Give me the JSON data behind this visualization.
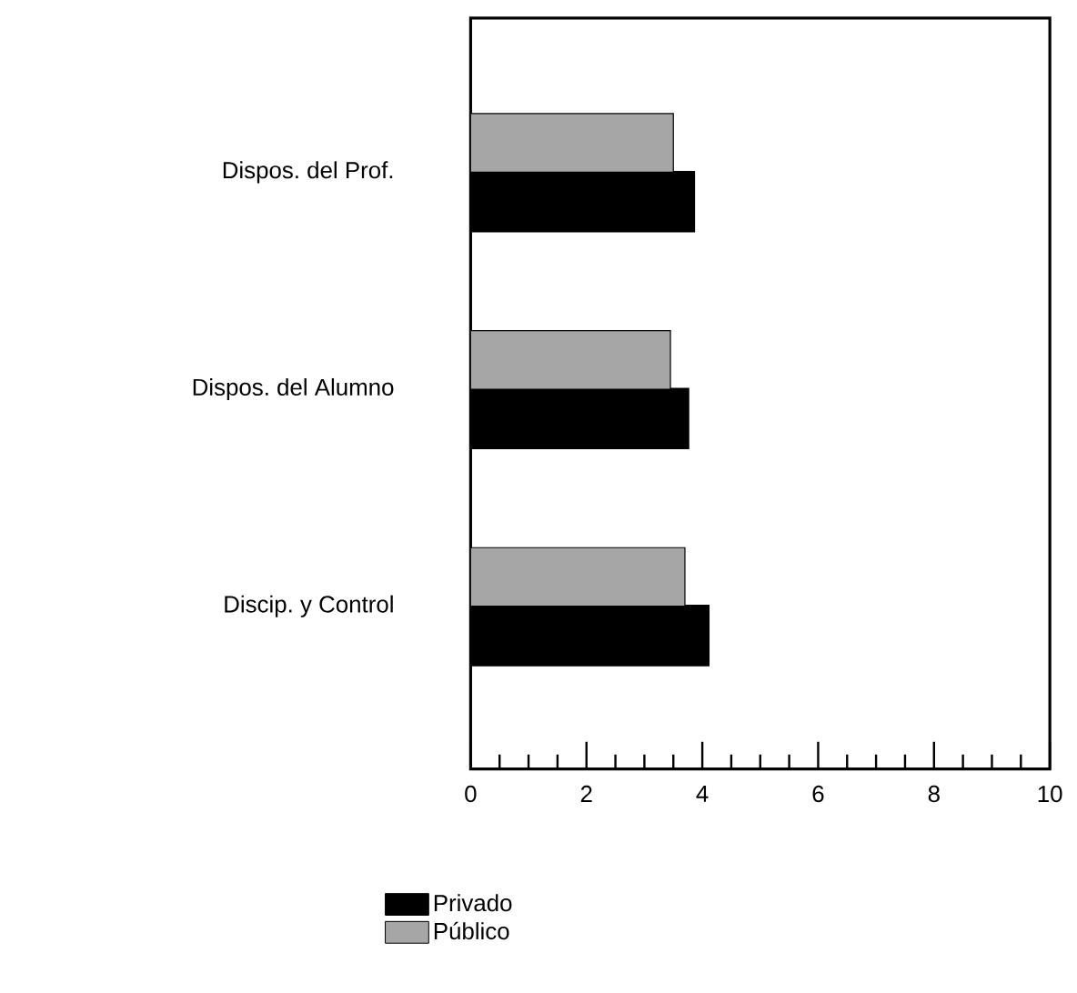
{
  "chart_data": {
    "type": "bar",
    "orientation": "horizontal",
    "categories": [
      "Dispos. del Prof.",
      "Dispos. del Alumno",
      "Discip. y Control"
    ],
    "series": [
      {
        "name": "Privado",
        "color": "#000000",
        "values": [
          3.85,
          3.75,
          4.1
        ]
      },
      {
        "name": "Público",
        "color": "#a6a6a6",
        "values": [
          3.5,
          3.45,
          3.7
        ]
      }
    ],
    "xlim": [
      0,
      10
    ],
    "xticks": [
      0,
      {
        "value": 0.5,
        "label": null
      },
      {
        "value": 1,
        "label": null
      },
      {
        "value": 1.5,
        "label": null
      },
      2,
      {
        "value": 2.5,
        "label": null
      },
      {
        "value": 3,
        "label": null
      },
      {
        "value": 3.5,
        "label": null
      },
      4,
      {
        "value": 4.5,
        "label": null
      },
      {
        "value": 5,
        "label": null
      },
      {
        "value": 5.5,
        "label": null
      },
      6,
      {
        "value": 6.5,
        "label": null
      },
      {
        "value": 7,
        "label": null
      },
      {
        "value": 7.5,
        "label": null
      },
      8,
      {
        "value": 8.5,
        "label": null
      },
      {
        "value": 9,
        "label": null
      },
      {
        "value": 9.5,
        "label": null
      },
      10
    ],
    "grid": false,
    "legend": "bottom left"
  }
}
